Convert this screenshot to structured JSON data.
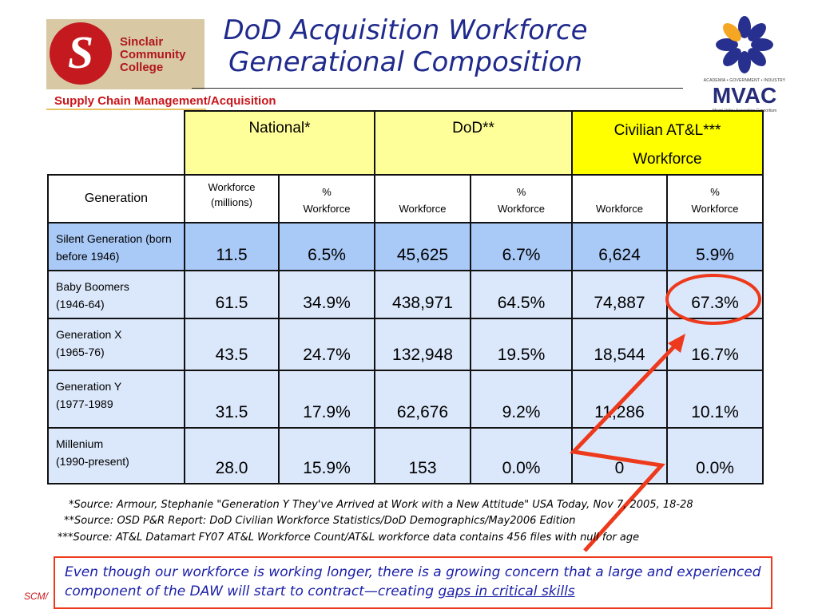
{
  "header": {
    "logo_left": {
      "name": "Sinclair\nCommunity\nCollege",
      "glyph": "S"
    },
    "title_line1": "DoD Acquisition Workforce",
    "title_line2": "Generational Composition",
    "subtitle": "Supply Chain Management/Acquisition",
    "logo_right": {
      "tagline": "ACADEMIA • GOVERNMENT • INDUSTRY",
      "mark": "MVAC",
      "full_name": "Miami Valley Acquisition Consortium"
    }
  },
  "table": {
    "groups": {
      "national": "National*",
      "dod": "DoD**",
      "civilian": "Civilian AT&L***\nWorkforce"
    },
    "columns": {
      "generation": "Generation",
      "workforce_millions": "Workforce\n(millions)",
      "pct_workforce": "%\nWorkforce",
      "workforce": "Workforce"
    },
    "rows": [
      {
        "label": "Silent Generation (born\nbefore 1946)",
        "national_wf": "11.5",
        "national_pct": "6.5%",
        "dod_wf": "45,625",
        "dod_pct": "6.7%",
        "civ_wf": "6,624",
        "civ_pct": "5.9%"
      },
      {
        "label": "Baby Boomers\n(1946-64)",
        "national_wf": "61.5",
        "national_pct": "34.9%",
        "dod_wf": "438,971",
        "dod_pct": "64.5%",
        "civ_wf": "74,887",
        "civ_pct": "67.3%"
      },
      {
        "label": "Generation X\n(1965-76)",
        "national_wf": "43.5",
        "national_pct": "24.7%",
        "dod_wf": "132,948",
        "dod_pct": "19.5%",
        "civ_wf": "18,544",
        "civ_pct": "16.7%"
      },
      {
        "label": "Generation Y\n(1977-1989",
        "national_wf": "31.5",
        "national_pct": "17.9%",
        "dod_wf": "62,676",
        "dod_pct": "9.2%",
        "civ_wf": "11,286",
        "civ_pct": "10.1%"
      },
      {
        "label": "Millenium\n(1990-present)",
        "national_wf": "28.0",
        "national_pct": "15.9%",
        "dod_wf": "153",
        "dod_pct": "0.0%",
        "civ_wf": "0",
        "civ_pct": "0.0%"
      }
    ]
  },
  "footnotes": [
    "*Source: Armour, Stephanie \"Generation Y They've Arrived at Work with a New Attitude\" USA Today, Nov 7, 2005, 18-28",
    "**Source: OSD P&R Report: DoD Civilian Workforce Statistics/DoD Demographics/May2006 Edition",
    "***Source:  AT&L Datamart FY07 AT&L Workforce Count/AT&L workforce data contains 456 files with null for age"
  ],
  "callout": {
    "text": "Even though our workforce is working longer, there is a growing concern that a large and experienced component of the DAW will start to contract—creating ",
    "emphasis": "gaps in critical skills"
  },
  "footer_tag": "SCM/",
  "colors": {
    "title": "#1f2a8c",
    "accent_red": "#ee3a1c",
    "national_header": "#ffff99",
    "civilian_header": "#ffff00",
    "silent_row": "#a9c9f7",
    "row_fill": "#dbe8fb",
    "callout_text": "#1a1fa8"
  }
}
